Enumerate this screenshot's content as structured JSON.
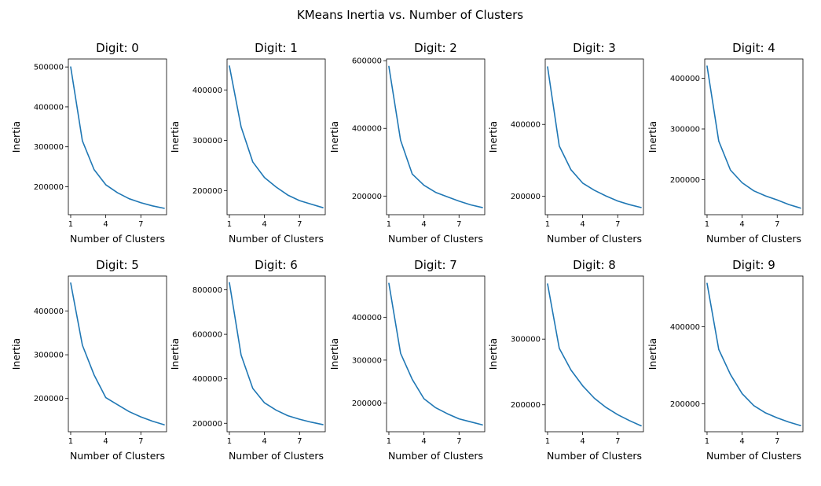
{
  "figure": {
    "title": "KMeans Inertia vs. Number of Clusters"
  },
  "style": {
    "line_color": "#1f77b4"
  },
  "chart_data": [
    {
      "type": "line",
      "title": "Digit: 0",
      "xlabel": "Number of Clusters",
      "ylabel": "Inertia",
      "x": [
        1,
        2,
        3,
        4,
        5,
        6,
        7,
        8,
        9
      ],
      "values": [
        500000,
        315000,
        243000,
        205000,
        185000,
        170000,
        160000,
        152000,
        146000
      ],
      "xlim": [
        0.8,
        9.2
      ],
      "ylim": [
        130000,
        520000
      ],
      "xticks": [
        1,
        4,
        7
      ],
      "yticks": [
        200000,
        300000,
        400000,
        500000
      ]
    },
    {
      "type": "line",
      "title": "Digit: 1",
      "xlabel": "Number of Clusters",
      "ylabel": "Inertia",
      "x": [
        1,
        2,
        3,
        4,
        5,
        6,
        7,
        8,
        9
      ],
      "values": [
        448000,
        327000,
        257000,
        226000,
        207000,
        191000,
        180000,
        173000,
        166000
      ],
      "xlim": [
        0.8,
        9.2
      ],
      "ylim": [
        152000,
        462000
      ],
      "xticks": [
        1,
        4,
        7
      ],
      "yticks": [
        200000,
        300000,
        400000
      ]
    },
    {
      "type": "line",
      "title": "Digit: 2",
      "xlabel": "Number of Clusters",
      "ylabel": "Inertia",
      "x": [
        1,
        2,
        3,
        4,
        5,
        6,
        7,
        8,
        9
      ],
      "values": [
        583000,
        365000,
        265000,
        232000,
        211000,
        198000,
        185000,
        174000,
        166000
      ],
      "xlim": [
        0.8,
        9.2
      ],
      "ylim": [
        145000,
        605000
      ],
      "xticks": [
        1,
        4,
        7
      ],
      "yticks": [
        200000,
        400000,
        600000
      ]
    },
    {
      "type": "line",
      "title": "Digit: 3",
      "xlabel": "Number of Clusters",
      "ylabel": "Inertia",
      "x": [
        1,
        2,
        3,
        4,
        5,
        6,
        7,
        8,
        9
      ],
      "values": [
        560000,
        340000,
        274000,
        237000,
        217000,
        201000,
        187000,
        177000,
        169000
      ],
      "xlim": [
        0.8,
        9.2
      ],
      "ylim": [
        149000,
        582000
      ],
      "xticks": [
        1,
        4,
        7
      ],
      "yticks": [
        200000,
        400000
      ]
    },
    {
      "type": "line",
      "title": "Digit: 4",
      "xlabel": "Number of Clusters",
      "ylabel": "Inertia",
      "x": [
        1,
        2,
        3,
        4,
        5,
        6,
        7,
        8,
        9
      ],
      "values": [
        424000,
        276000,
        219000,
        194000,
        178000,
        168000,
        160000,
        151000,
        144000
      ],
      "xlim": [
        0.8,
        9.2
      ],
      "ylim": [
        131000,
        438000
      ],
      "xticks": [
        1,
        4,
        7
      ],
      "yticks": [
        200000,
        300000,
        400000
      ]
    },
    {
      "type": "line",
      "title": "Digit: 5",
      "xlabel": "Number of Clusters",
      "ylabel": "Inertia",
      "x": [
        1,
        2,
        3,
        4,
        5,
        6,
        7,
        8,
        9
      ],
      "values": [
        464000,
        322000,
        254000,
        202000,
        186000,
        170000,
        158000,
        148000,
        140000
      ],
      "xlim": [
        0.8,
        9.2
      ],
      "ylim": [
        124000,
        480000
      ],
      "xticks": [
        1,
        4,
        7
      ],
      "yticks": [
        200000,
        300000,
        400000
      ]
    },
    {
      "type": "line",
      "title": "Digit: 6",
      "xlabel": "Number of Clusters",
      "ylabel": "Inertia",
      "x": [
        1,
        2,
        3,
        4,
        5,
        6,
        7,
        8,
        9
      ],
      "values": [
        832000,
        507000,
        357000,
        292000,
        259000,
        234000,
        218000,
        205000,
        194000
      ],
      "xlim": [
        0.8,
        9.2
      ],
      "ylim": [
        162000,
        862000
      ],
      "xticks": [
        1,
        4,
        7
      ],
      "yticks": [
        200000,
        400000,
        600000,
        800000
      ]
    },
    {
      "type": "line",
      "title": "Digit: 7",
      "xlabel": "Number of Clusters",
      "ylabel": "Inertia",
      "x": [
        1,
        2,
        3,
        4,
        5,
        6,
        7,
        8,
        9
      ],
      "values": [
        479000,
        316000,
        255000,
        210000,
        189000,
        175000,
        163000,
        156000,
        149000
      ],
      "xlim": [
        0.8,
        9.2
      ],
      "ylim": [
        133000,
        496000
      ],
      "xticks": [
        1,
        4,
        7
      ],
      "yticks": [
        200000,
        300000,
        400000
      ]
    },
    {
      "type": "line",
      "title": "Digit: 8",
      "xlabel": "Number of Clusters",
      "ylabel": "Inertia",
      "x": [
        1,
        2,
        3,
        4,
        5,
        6,
        7,
        8,
        9
      ],
      "values": [
        384000,
        286000,
        253000,
        229000,
        210000,
        196000,
        185000,
        176000,
        168000
      ],
      "xlim": [
        0.8,
        9.2
      ],
      "ylim": [
        159000,
        396000
      ],
      "xticks": [
        1,
        4,
        7
      ],
      "yticks": [
        200000,
        300000
      ]
    },
    {
      "type": "line",
      "title": "Digit: 9",
      "xlabel": "Number of Clusters",
      "ylabel": "Inertia",
      "x": [
        1,
        2,
        3,
        4,
        5,
        6,
        7,
        8,
        9
      ],
      "values": [
        513000,
        341000,
        276000,
        226000,
        195000,
        176000,
        163000,
        152000,
        143000
      ],
      "xlim": [
        0.8,
        9.2
      ],
      "ylim": [
        127000,
        532000
      ],
      "xticks": [
        1,
        4,
        7
      ],
      "yticks": [
        200000,
        400000
      ]
    }
  ]
}
